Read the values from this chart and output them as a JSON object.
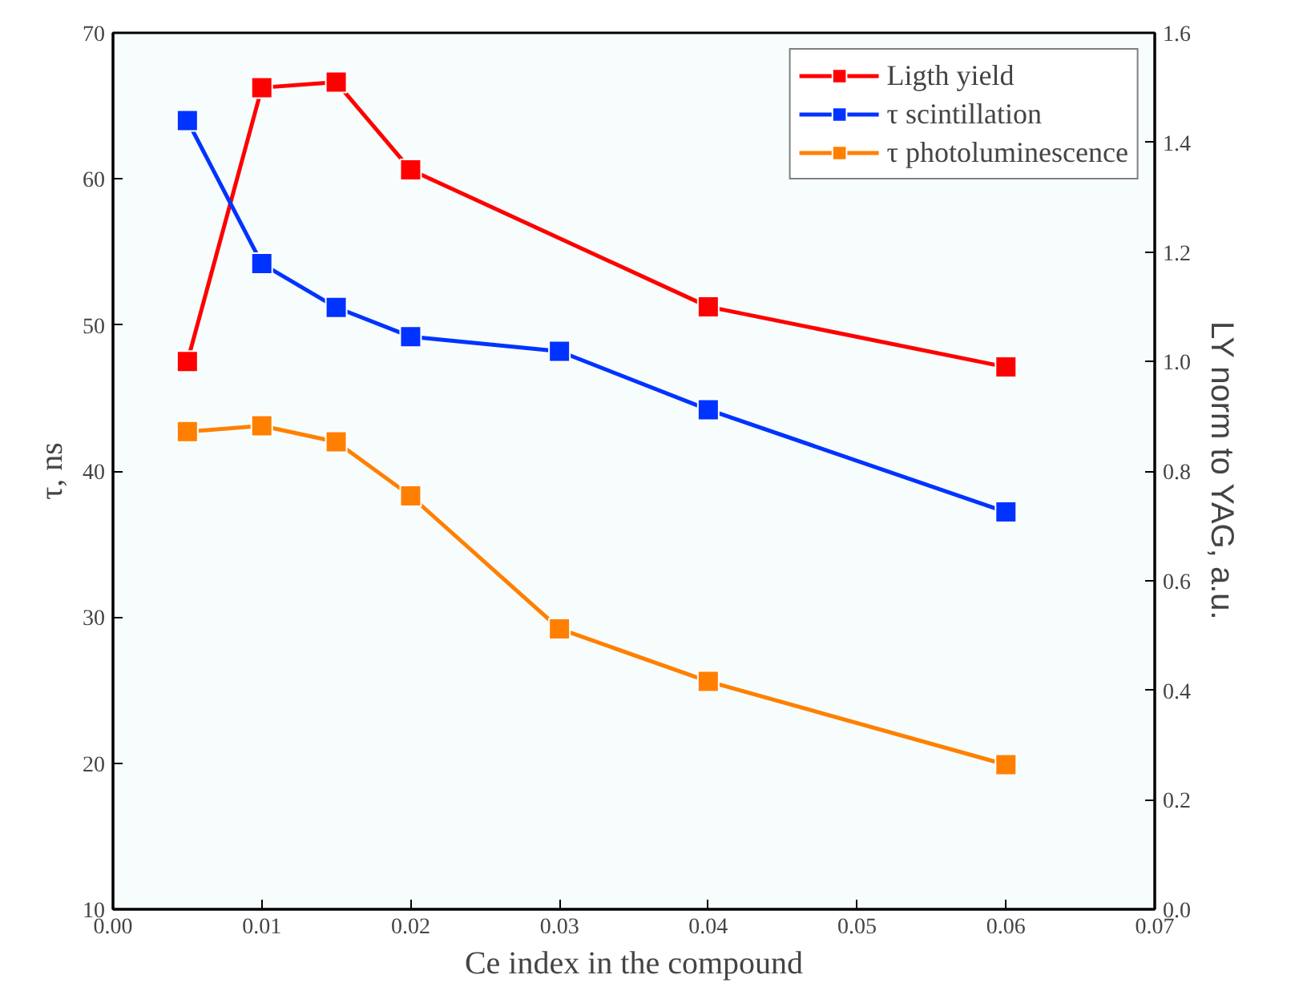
{
  "chart_data": {
    "type": "line",
    "xlabel": "Ce index in the compound",
    "ylabel": "τ, ns",
    "y2label": "LY norm to YAG, a.u.",
    "x": [
      0.005,
      0.01,
      0.015,
      0.02,
      0.03,
      0.04,
      0.06
    ],
    "series": [
      {
        "name": "Ligth yield",
        "color": "#ff0000",
        "axis": "y2",
        "x": [
          0.005,
          0.01,
          0.015,
          0.02,
          0.04,
          0.06
        ],
        "values": [
          1.0,
          1.5,
          1.51,
          1.35,
          1.1,
          0.99
        ]
      },
      {
        "name": "τ scintillation",
        "color": "#0033ff",
        "values": [
          64,
          54.2,
          51.2,
          49.2,
          48.2,
          44.2,
          37.2
        ]
      },
      {
        "name": "τ photoluminescence",
        "color": "#ff8000",
        "values": [
          42.7,
          43.1,
          42.0,
          38.3,
          29.2,
          25.6,
          19.9
        ]
      }
    ],
    "xlim": [
      0.0,
      0.07
    ],
    "xticks": [
      {
        "value": 0,
        "label": "0.00"
      },
      {
        "value": 0.01,
        "label": "0.01"
      },
      {
        "value": 0.02,
        "label": "0.02"
      },
      {
        "value": 0.03,
        "label": "0.03"
      },
      {
        "value": 0.04,
        "label": "0.04"
      },
      {
        "value": 0.05,
        "label": "0.05"
      },
      {
        "value": 0.06,
        "label": "0.06"
      },
      {
        "value": 0.07,
        "label": "0.07"
      }
    ],
    "ylim": [
      10,
      70
    ],
    "yticks": [
      10,
      20,
      30,
      40,
      50,
      60,
      70
    ],
    "y2lim": [
      0,
      1.6
    ],
    "y2ticks": [
      {
        "value": 0,
        "label": "0.0"
      },
      {
        "value": 0.2,
        "label": "0.2"
      },
      {
        "value": 0.4,
        "label": "0.4"
      },
      {
        "value": 0.6,
        "label": "0.6"
      },
      {
        "value": 0.8,
        "label": "0.8"
      },
      {
        "value": 1.0,
        "label": "1.0"
      },
      {
        "value": 1.2,
        "label": "1.2"
      },
      {
        "value": 1.4,
        "label": "1.4"
      },
      {
        "value": 1.6,
        "label": "1.6"
      }
    ],
    "marker": "square",
    "line_style": "solid",
    "legend": "top right",
    "grid": false
  }
}
